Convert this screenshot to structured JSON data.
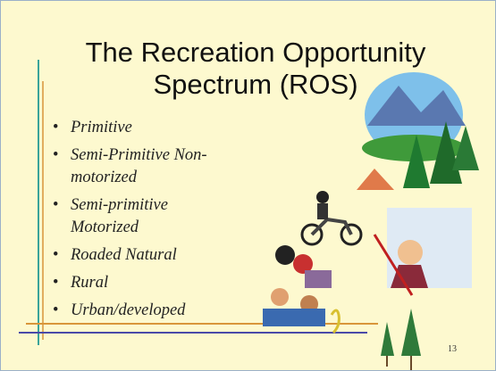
{
  "slide": {
    "title": "The Recreation Opportunity\nSpectrum  (ROS)",
    "bullets": [
      "Primitive",
      "Semi-Primitive Non-\nmotorized",
      "Semi-primitive\nMotorized",
      "Roaded Natural",
      "Rural",
      "Urban/developed"
    ],
    "page_number": "13"
  }
}
